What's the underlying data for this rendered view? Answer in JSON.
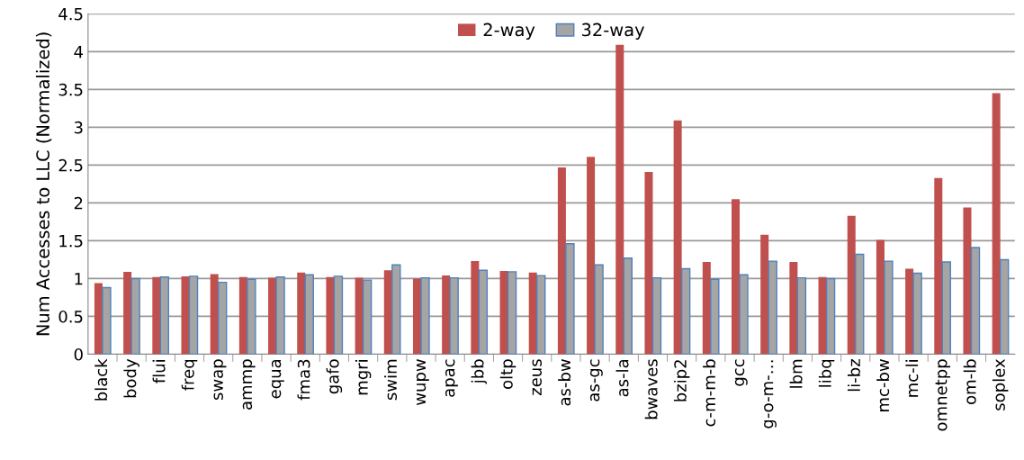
{
  "chart_data": {
    "type": "bar",
    "ylabel": "Num Accesses to LLC (Normalized)",
    "categories": [
      "black",
      "body",
      "flui",
      "freq",
      "swap",
      "ammp",
      "equa",
      "fma3",
      "gafo",
      "mgri",
      "swim",
      "wupw",
      "apac",
      "jbb",
      "oltp",
      "zeus",
      "as-bw",
      "as-gc",
      "as-la",
      "bwaves",
      "bzip2",
      "c-m-m-b",
      "gcc",
      "g-o-m-…",
      "lbm",
      "libq",
      "li-bz",
      "mc-bw",
      "mc-li",
      "omnetpp",
      "om-lb",
      "soplex"
    ],
    "series": [
      {
        "name": "2-way",
        "color": "#c0504d",
        "values": [
          0.94,
          1.09,
          1.02,
          1.03,
          1.06,
          1.02,
          1.01,
          1.08,
          1.02,
          1.01,
          1.11,
          1.0,
          1.04,
          1.23,
          1.1,
          1.08,
          2.47,
          2.61,
          4.09,
          2.41,
          3.09,
          1.22,
          2.05,
          1.58,
          1.22,
          1.02,
          1.83,
          1.51,
          1.13,
          2.33,
          1.94,
          3.45
        ]
      },
      {
        "name": "32-way",
        "color": "#a5a5a5",
        "values": [
          0.88,
          1.0,
          1.02,
          1.03,
          0.95,
          0.99,
          1.02,
          1.05,
          1.03,
          0.98,
          1.18,
          1.01,
          1.01,
          1.11,
          1.09,
          1.04,
          1.46,
          1.18,
          1.27,
          1.01,
          1.13,
          0.99,
          1.05,
          1.23,
          1.01,
          1.0,
          1.32,
          1.23,
          1.07,
          1.22,
          1.41,
          1.25
        ]
      }
    ],
    "ylim": [
      0,
      4.5
    ],
    "yticks": [
      0,
      0.5,
      1,
      1.5,
      2,
      2.5,
      3,
      3.5,
      4,
      4.5
    ],
    "grid": "y",
    "legend": "top"
  }
}
